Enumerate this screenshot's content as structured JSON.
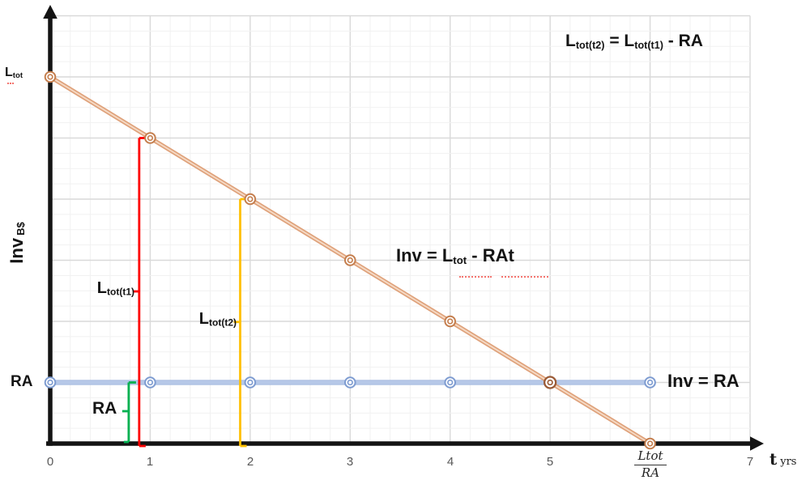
{
  "chart_data": {
    "type": "line",
    "x": [
      0,
      1,
      2,
      3,
      4,
      5,
      6
    ],
    "series": [
      {
        "name": "Inv = RA",
        "values": [
          1,
          1,
          1,
          1,
          1,
          1,
          1
        ],
        "color": "#b6c8e8",
        "edge_color": "#a0b6de",
        "marker_color": "#7e9cd1"
      },
      {
        "name": "Inv = Ltot - RAt",
        "values": [
          6,
          5,
          4,
          3,
          2,
          1,
          0
        ],
        "color": "#dfa27b",
        "fill_color": "#f5d9c4",
        "marker_color": "#c57f4f",
        "overlap_marker_color": "#9a5a36",
        "overlap_at_x": 5
      }
    ],
    "title": "",
    "xlabel": "t yrs",
    "ylabel": "Inv B$",
    "xlim": [
      0,
      7.35
    ],
    "ylim": [
      0,
      7
    ],
    "grid": true,
    "x_ticks": [
      "0",
      "1",
      "2",
      "3",
      "4",
      "5",
      "Ltot/RA",
      "7"
    ],
    "y_axis_value_labels": [
      {
        "value": 6,
        "label": "Ltot"
      },
      {
        "value": 1,
        "label": "RA"
      }
    ],
    "x_intercept": {
      "t": 6,
      "label": "Ltot/RA"
    },
    "annotations": {
      "top_formula": "Ltot(t2) = Ltot(t1) - RA",
      "brackets": [
        {
          "label": "Ltot(t1)",
          "t": 0.89,
          "from": 0,
          "to": 5,
          "label_value": 2.49,
          "color": "#fe0000",
          "bottom_cap": "right"
        },
        {
          "label": "Ltot(t2)",
          "t": 1.9,
          "from": 0,
          "to": 4,
          "label_value": 1.99,
          "color": "#ffc000",
          "bottom_cap": "right"
        },
        {
          "label": "RA",
          "t": 0.785,
          "from": 0,
          "to": 1,
          "label_value": 0.53,
          "color": "#00b050",
          "bottom_cap": "left"
        }
      ]
    }
  },
  "labels": {
    "top_formula": {
      "p1": "L",
      "s1": "tot(t2)",
      "p2": " = L",
      "s2": "tot(t1)",
      "p3": " - RA"
    },
    "line_eq": {
      "p1": "Inv = L",
      "s1": "tot",
      "p2": " - RAt"
    },
    "ra_eq": "Inv = RA",
    "y_axis_title": {
      "main": "Inv",
      "sub": "B$"
    },
    "y_ltot": {
      "p1": "L",
      "s1": "tot"
    },
    "y_ra": "RA",
    "bracket_t1": {
      "p1": "L",
      "s1": "tot(t1)"
    },
    "bracket_t2": {
      "p1": "L",
      "s1": "tot(t2)"
    },
    "bracket_ra": "RA",
    "x_ticks": [
      "0",
      "1",
      "2",
      "3",
      "4",
      "5",
      "7"
    ],
    "x_frac": {
      "num": "Ltot",
      "den": "RA"
    },
    "x_axis_title": {
      "main": "t",
      "sub": "yrs"
    }
  }
}
